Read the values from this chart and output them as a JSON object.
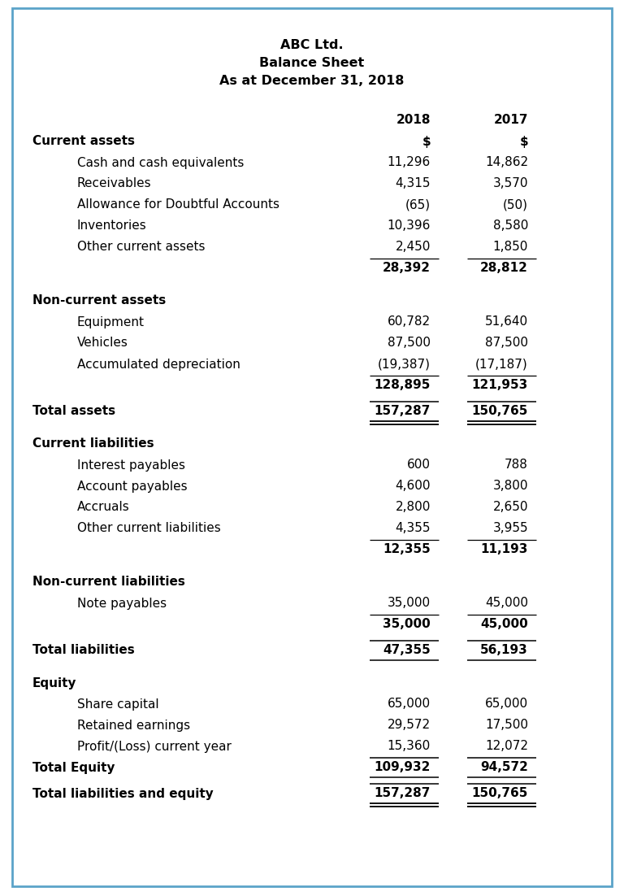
{
  "title_lines": [
    "ABC Ltd.",
    "Balance Sheet",
    "As at December 31, 2018"
  ],
  "rows": [
    {
      "label": "",
      "val2018": "2018",
      "val2017": "2017",
      "style": "col_header",
      "indent": 0
    },
    {
      "label": "Current assets",
      "val2018": "$",
      "val2017": "$",
      "style": "section_currency",
      "indent": 0
    },
    {
      "label": "Cash and cash equivalents",
      "val2018": "11,296",
      "val2017": "14,862",
      "style": "normal",
      "indent": 1
    },
    {
      "label": "Receivables",
      "val2018": "4,315",
      "val2017": "3,570",
      "style": "normal",
      "indent": 1
    },
    {
      "label": "Allowance for Doubtful Accounts",
      "val2018": "(65)",
      "val2017": "(50)",
      "style": "normal",
      "indent": 1
    },
    {
      "label": "Inventories",
      "val2018": "10,396",
      "val2017": "8,580",
      "style": "normal",
      "indent": 1
    },
    {
      "label": "Other current assets",
      "val2018": "2,450",
      "val2017": "1,850",
      "style": "normal",
      "indent": 1
    },
    {
      "label": "",
      "val2018": "28,392",
      "val2017": "28,812",
      "style": "subtotal",
      "indent": 0
    },
    {
      "label": "Non-current assets",
      "val2018": "",
      "val2017": "",
      "style": "header",
      "indent": 0
    },
    {
      "label": "Equipment",
      "val2018": "60,782",
      "val2017": "51,640",
      "style": "normal",
      "indent": 1
    },
    {
      "label": "Vehicles",
      "val2018": "87,500",
      "val2017": "87,500",
      "style": "normal",
      "indent": 1
    },
    {
      "label": "Accumulated depreciation",
      "val2018": "(19,387)",
      "val2017": "(17,187)",
      "style": "normal",
      "indent": 1
    },
    {
      "label": "",
      "val2018": "128,895",
      "val2017": "121,953",
      "style": "subtotal",
      "indent": 0
    },
    {
      "label": "Total assets",
      "val2018": "157,287",
      "val2017": "150,765",
      "style": "total_double",
      "indent": 0
    },
    {
      "label": "Current liabilities",
      "val2018": "",
      "val2017": "",
      "style": "header",
      "indent": 0
    },
    {
      "label": "Interest payables",
      "val2018": "600",
      "val2017": "788",
      "style": "normal",
      "indent": 1
    },
    {
      "label": "Account payables",
      "val2018": "4,600",
      "val2017": "3,800",
      "style": "normal",
      "indent": 1
    },
    {
      "label": "Accruals",
      "val2018": "2,800",
      "val2017": "2,650",
      "style": "normal",
      "indent": 1
    },
    {
      "label": "Other current liabilities",
      "val2018": "4,355",
      "val2017": "3,955",
      "style": "normal",
      "indent": 1
    },
    {
      "label": "",
      "val2018": "12,355",
      "val2017": "11,193",
      "style": "subtotal",
      "indent": 0
    },
    {
      "label": "Non-current liabilities",
      "val2018": "",
      "val2017": "",
      "style": "header",
      "indent": 0
    },
    {
      "label": "Note payables",
      "val2018": "35,000",
      "val2017": "45,000",
      "style": "normal",
      "indent": 1
    },
    {
      "label": "",
      "val2018": "35,000",
      "val2017": "45,000",
      "style": "subtotal",
      "indent": 0
    },
    {
      "label": "Total liabilities",
      "val2018": "47,355",
      "val2017": "56,193",
      "style": "total_single",
      "indent": 0
    },
    {
      "label": "Equity",
      "val2018": "",
      "val2017": "",
      "style": "header",
      "indent": 0
    },
    {
      "label": "Share capital",
      "val2018": "65,000",
      "val2017": "65,000",
      "style": "normal",
      "indent": 1
    },
    {
      "label": "Retained earnings",
      "val2018": "29,572",
      "val2017": "17,500",
      "style": "normal",
      "indent": 1
    },
    {
      "label": "Profit/(Loss) current year",
      "val2018": "15,360",
      "val2017": "12,072",
      "style": "normal",
      "indent": 1
    },
    {
      "label": "Total Equity",
      "val2018": "109,932",
      "val2017": "94,572",
      "style": "total_single",
      "indent": 0
    },
    {
      "label": "Total liabilities and equity",
      "val2018": "157,287",
      "val2017": "150,765",
      "style": "total_double",
      "indent": 0
    }
  ],
  "border_color": "#5ba3c9",
  "background_color": "#ffffff",
  "text_color": "#000000"
}
